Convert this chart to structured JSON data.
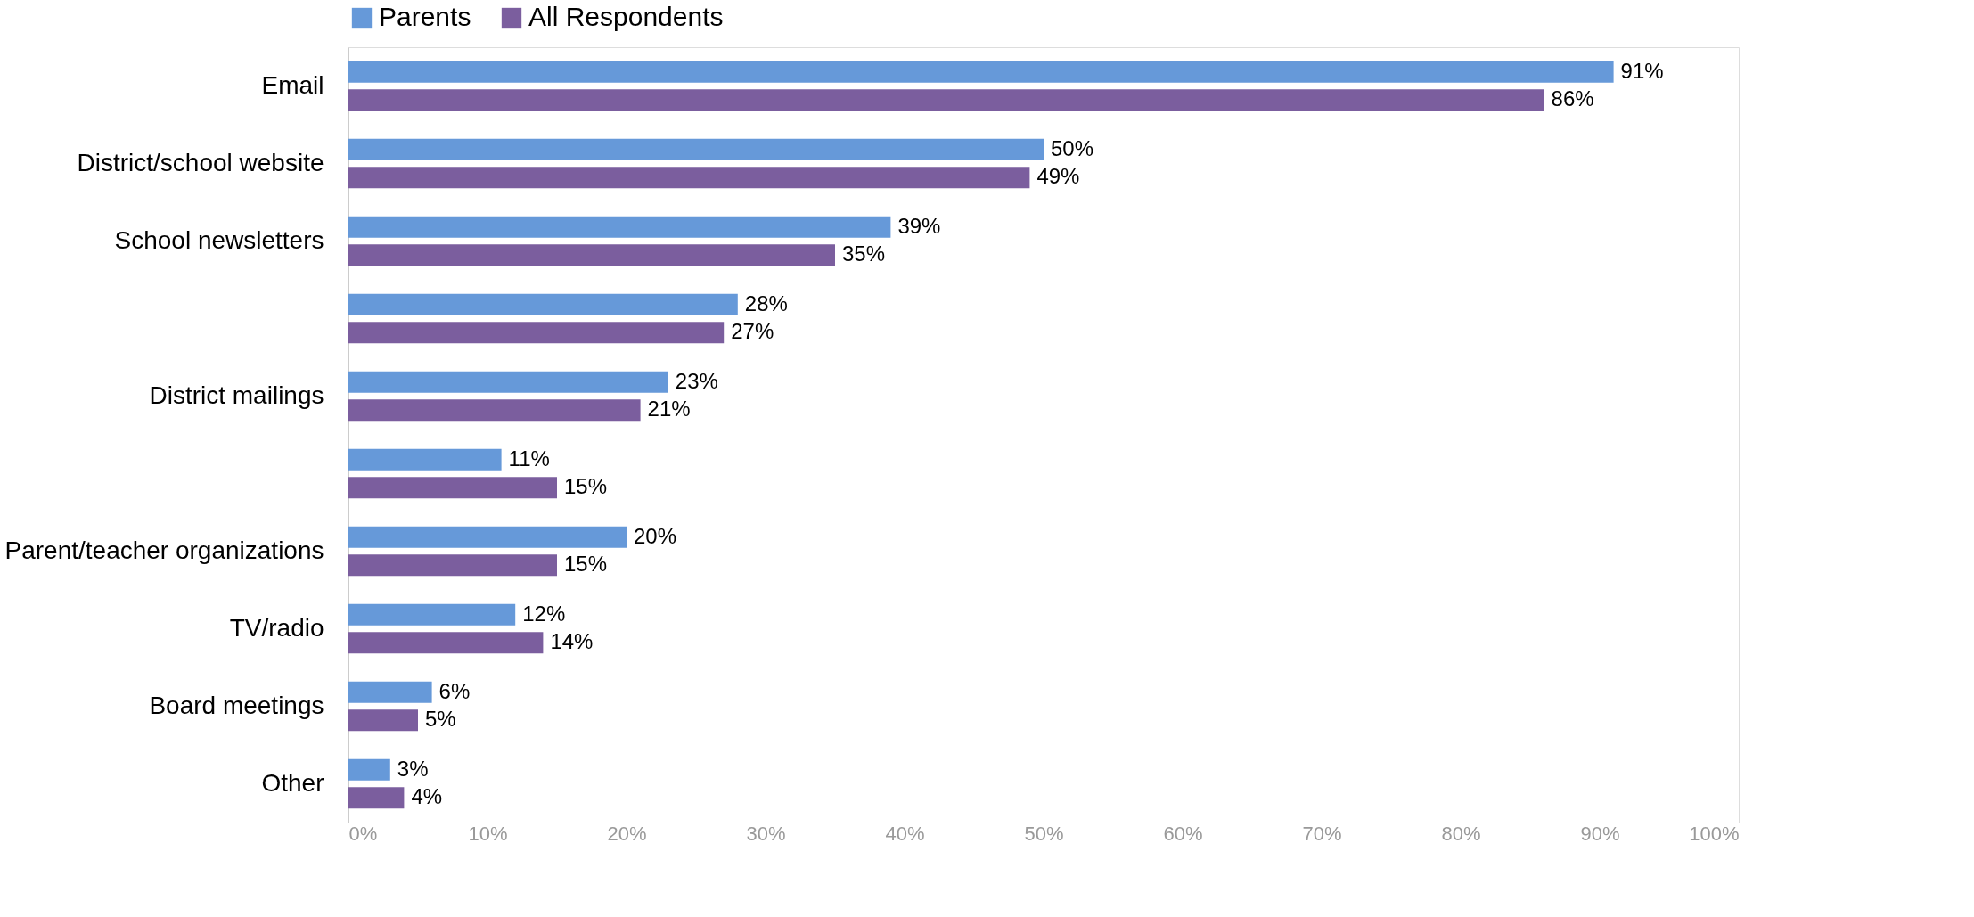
{
  "chart_data": {
    "type": "bar",
    "orientation": "horizontal",
    "categories": [
      "Email",
      "District/school website",
      "School newsletters",
      null,
      "District mailings",
      null,
      "Parent/teacher organizations",
      "TV/radio",
      "Board meetings",
      "Other"
    ],
    "series": [
      {
        "name": "Parents",
        "color": "#6699d9",
        "values": [
          91,
          50,
          39,
          28,
          23,
          11,
          20,
          12,
          6,
          3
        ],
        "value_labels": [
          "91%",
          "50%",
          "39%",
          "28%",
          "23%",
          "11%",
          "20%",
          "12%",
          "6%",
          "3%"
        ]
      },
      {
        "name": "All Respondents",
        "color": "#7b5e9e",
        "values": [
          86,
          49,
          35,
          27,
          21,
          15,
          15,
          14,
          5,
          4
        ],
        "value_labels": [
          "86%",
          "49%",
          "35%",
          "27%",
          "21%",
          "15%",
          "15%",
          "14%",
          "5%",
          "4%"
        ]
      }
    ],
    "xlim": [
      0,
      100
    ],
    "xticks": [
      {
        "value": 0,
        "label": "0%"
      },
      {
        "value": 10,
        "label": "10%"
      },
      {
        "value": 20,
        "label": "20%"
      },
      {
        "value": 30,
        "label": "30%"
      },
      {
        "value": 40,
        "label": "40%"
      },
      {
        "value": 50,
        "label": "50%"
      },
      {
        "value": 60,
        "label": "60%"
      },
      {
        "value": 70,
        "label": "70%"
      },
      {
        "value": 80,
        "label": "80%"
      },
      {
        "value": 90,
        "label": "90%"
      },
      {
        "value": 100,
        "label": "100%"
      }
    ],
    "grid": false,
    "legend": "top"
  }
}
